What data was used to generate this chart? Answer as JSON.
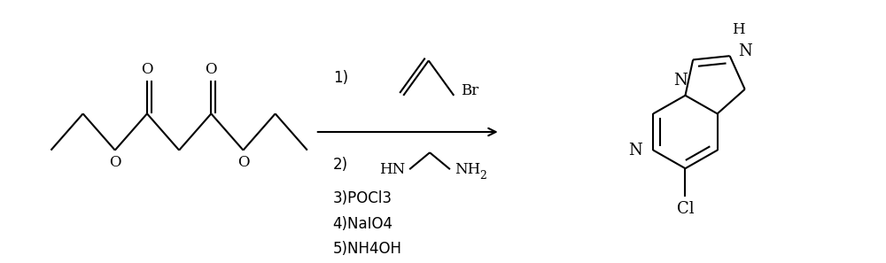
{
  "background_color": "#ffffff",
  "figure_width": 10.0,
  "figure_height": 2.97,
  "dpi": 100,
  "line_color": "#000000",
  "lw": 1.5,
  "font_size": 12,
  "reagent_steps": [
    "3)POCl3",
    "4)NaIO4",
    "5)NH4OH"
  ]
}
